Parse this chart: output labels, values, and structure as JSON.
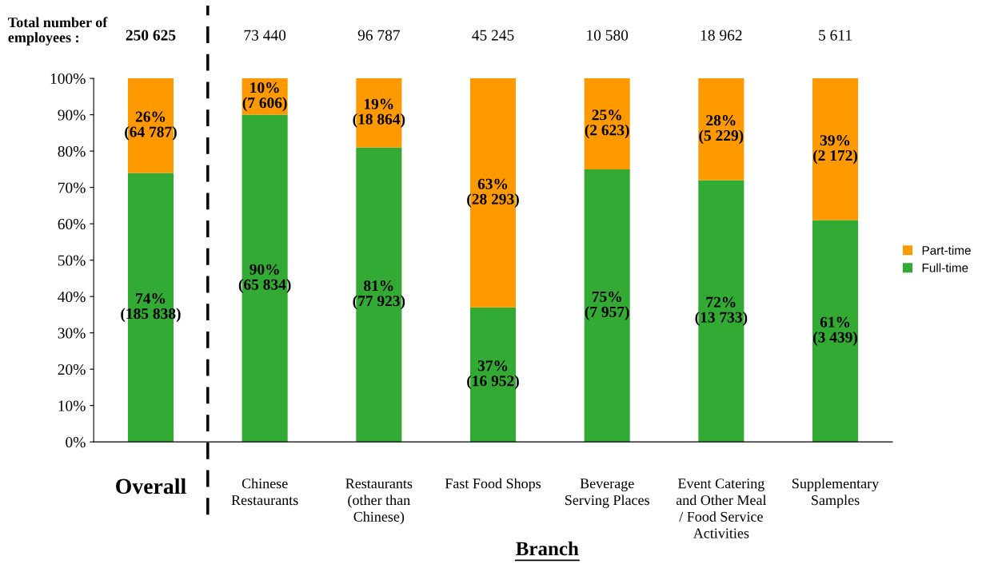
{
  "chart_data": {
    "type": "bar",
    "stacked": true,
    "categories": [
      "Overall",
      "Chinese\nRestaurants",
      "Restaurants\n(other than\nChinese)",
      "Fast Food Shops",
      "Beverage\nServing Places",
      "Event Catering\nand Other Meal\n/ Food Service\nActivities",
      "Supplementary\nSamples"
    ],
    "series": [
      {
        "name": "Full-time",
        "color": "#33aa33",
        "values": [
          74,
          90,
          81,
          37,
          75,
          72,
          61
        ],
        "value_labels": [
          "74%\n(185 838)",
          "90%\n(65 834)",
          "81%\n(77 923)",
          "37%\n(16 952)",
          "75%\n(7 957)",
          "72%\n(13 733)",
          "61%\n(3 439)"
        ]
      },
      {
        "name": "Part-time",
        "color": "#ff9900",
        "values": [
          26,
          10,
          19,
          63,
          25,
          28,
          39
        ],
        "value_labels": [
          "26%\n(64 787)",
          "10%\n(7 606)",
          "19%\n(18 864)",
          "63%\n(28 293)",
          "25%\n(2 623)",
          "28%\n(5 229)",
          "39%\n(2 172)"
        ]
      }
    ],
    "annotations": [
      "Total number of\nemployees :",
      "250 625",
      "73 440",
      "96 787",
      "45 245",
      "10 580",
      "18 962",
      "5 611"
    ],
    "xlabel": "Branch",
    "ylim": [
      0,
      100
    ],
    "yticks": [
      {
        "value": 0,
        "label": "0%"
      },
      {
        "value": 10,
        "label": "10%"
      },
      {
        "value": 20,
        "label": "20%"
      },
      {
        "value": 30,
        "label": "30%"
      },
      {
        "value": 40,
        "label": "40%"
      },
      {
        "value": 50,
        "label": "50%"
      },
      {
        "value": 60,
        "label": "60%"
      },
      {
        "value": 70,
        "label": "70%"
      },
      {
        "value": 80,
        "label": "80%"
      },
      {
        "value": 90,
        "label": "90%"
      },
      {
        "value": 100,
        "label": "100%"
      }
    ],
    "grid": false,
    "legend": "right"
  }
}
